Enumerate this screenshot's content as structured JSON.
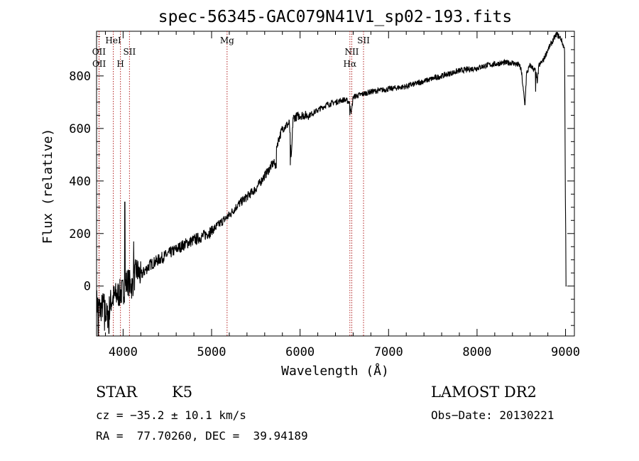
{
  "chart_data": {
    "type": "line",
    "title": "spec-56345-GAC079N41V1_sp02-193.fits",
    "xlabel": "Wavelength (Å)",
    "ylabel": "Flux (relative)",
    "xlim": [
      3700,
      9100
    ],
    "ylim": [
      -190,
      970
    ],
    "xticks": [
      4000,
      5000,
      6000,
      7000,
      8000,
      9000
    ],
    "yticks": [
      0,
      200,
      400,
      600,
      800
    ],
    "series": [
      {
        "values_note": "",
        "x": [
          3700,
          3740,
          3780,
          3820,
          3860,
          3900,
          3950,
          4000,
          4050,
          4100,
          4150,
          4200,
          4300,
          4400,
          4500,
          4600,
          4700,
          4800,
          4900,
          5000,
          5100,
          5200,
          5300,
          5400,
          5500,
          5600,
          5700,
          5720,
          5740,
          5800,
          5880,
          5900,
          5920,
          6000,
          6100,
          6200,
          6300,
          6400,
          6500,
          6560,
          6580,
          6600,
          6700,
          6800,
          6900,
          7000,
          7100,
          7200,
          7300,
          7400,
          7500,
          7600,
          7700,
          7800,
          7900,
          8000,
          8100,
          8200,
          8300,
          8400,
          8480,
          8500,
          8540,
          8560,
          8600,
          8660,
          8680,
          8700,
          8750,
          8800,
          8850,
          8900,
          8950,
          8990,
          9000,
          9005,
          9010
        ],
        "y": [
          -60,
          -90,
          -70,
          -120,
          -60,
          -40,
          -30,
          -20,
          20,
          0,
          60,
          40,
          80,
          100,
          120,
          140,
          160,
          175,
          190,
          210,
          240,
          270,
          310,
          340,
          370,
          420,
          470,
          460,
          540,
          600,
          620,
          470,
          640,
          650,
          650,
          670,
          690,
          700,
          710,
          700,
          660,
          720,
          730,
          740,
          745,
          750,
          755,
          760,
          770,
          780,
          790,
          800,
          810,
          820,
          825,
          830,
          840,
          845,
          850,
          850,
          840,
          820,
          690,
          810,
          840,
          820,
          780,
          840,
          860,
          900,
          930,
          960,
          940,
          900,
          200,
          0,
          0
        ],
        "spikes": [
          {
            "x": 3720,
            "y": -190
          },
          {
            "x": 3790,
            "y": -170
          },
          {
            "x": 3840,
            "y": -180
          },
          {
            "x": 4020,
            "y": 320
          },
          {
            "x": 4120,
            "y": 170
          },
          {
            "x": 5730,
            "y": 450
          },
          {
            "x": 5890,
            "y": 460
          },
          {
            "x": 6562,
            "y": 650
          },
          {
            "x": 8542,
            "y": 690
          },
          {
            "x": 8662,
            "y": 740
          }
        ]
      }
    ],
    "lines": [
      {
        "label": "OII",
        "x": 3727,
        "row": 2
      },
      {
        "label": "OII",
        "x": 3729,
        "row": 3
      },
      {
        "label": "HeI",
        "x": 3889,
        "row": 1
      },
      {
        "label": "H",
        "x": 3970,
        "row": 3
      },
      {
        "label": "SII",
        "x": 4072,
        "row": 2
      },
      {
        "label": "Mg",
        "x": 5175,
        "row": 1
      },
      {
        "label": "NII",
        "x": 6584,
        "row": 2
      },
      {
        "label": "Hα",
        "x": 6563,
        "row": 3
      },
      {
        "label": "SII",
        "x": 6717,
        "row": 1
      }
    ]
  },
  "info": {
    "class": "STAR",
    "subclass": "K5",
    "survey": "LAMOST DR2",
    "cz": "cz = −35.2 ± 10.1 km/s",
    "obsdate": "Obs−Date: 20130221",
    "radec": "RA =  77.70260, DEC =  39.94189"
  }
}
